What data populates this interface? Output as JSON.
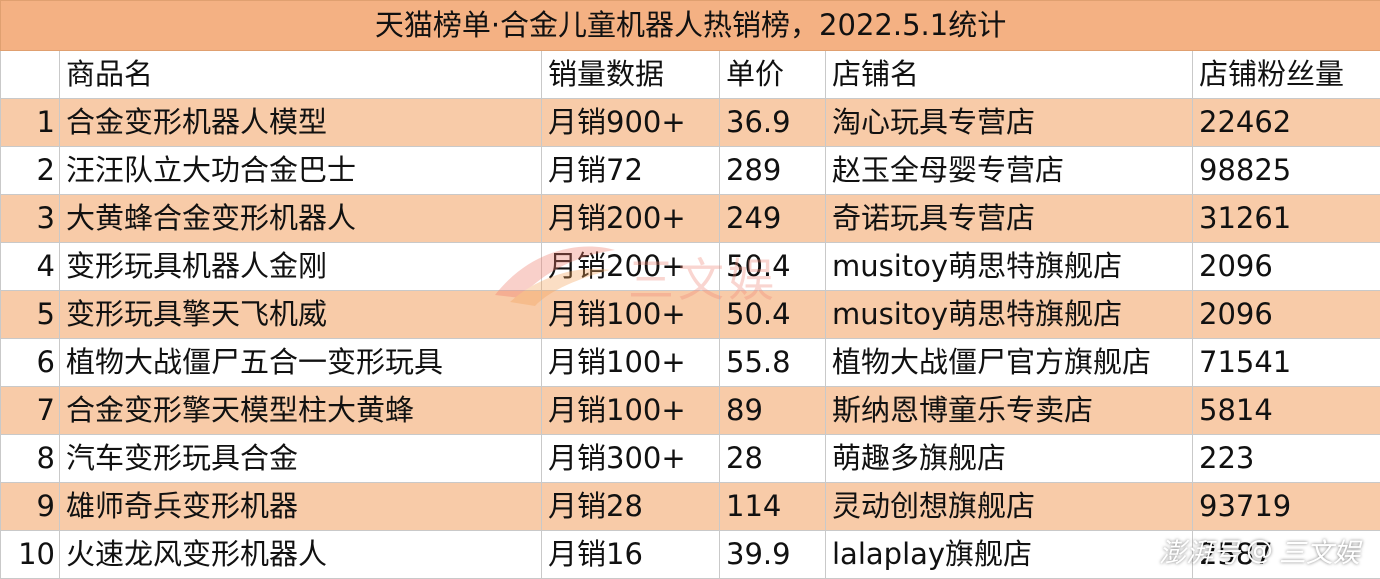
{
  "title": "天猫榜单·合金儿童机器人热销榜，2022.5.1统计",
  "headers": [
    "",
    "商品名",
    "销量数据",
    "单价",
    "店铺名",
    "店铺粉丝量"
  ],
  "rows": [
    {
      "rank": "1",
      "product": "合金变形机器人模型",
      "sales": "月销900+",
      "price": "36.9",
      "shop": "淘心玩具专营店",
      "fans": "22462"
    },
    {
      "rank": "2",
      "product": "汪汪队立大功合金巴士",
      "sales": "月销72",
      "price": "289",
      "shop": "赵玉全母婴专营店",
      "fans": "98825"
    },
    {
      "rank": "3",
      "product": "大黄蜂合金变形机器人",
      "sales": "月销200+",
      "price": "249",
      "shop": "奇诺玩具专营店",
      "fans": "31261"
    },
    {
      "rank": "4",
      "product": "变形玩具机器人金刚",
      "sales": "月销200+",
      "price": "50.4",
      "shop": "musitoy萌思特旗舰店",
      "fans": "2096"
    },
    {
      "rank": "5",
      "product": "变形玩具擎天飞机威",
      "sales": "月销100+",
      "price": "50.4",
      "shop": "musitoy萌思特旗舰店",
      "fans": "2096"
    },
    {
      "rank": "6",
      "product": "植物大战僵尸五合一变形玩具",
      "sales": "月销100+",
      "price": "55.8",
      "shop": "植物大战僵尸官方旗舰店",
      "fans": "71541"
    },
    {
      "rank": "7",
      "product": "合金变形擎天模型柱大黄蜂",
      "sales": "月销100+",
      "price": "89",
      "shop": "斯纳恩博童乐专卖店",
      "fans": "5814"
    },
    {
      "rank": "8",
      "product": "汽车变形玩具合金",
      "sales": "月销300+",
      "price": "28",
      "shop": "萌趣多旗舰店",
      "fans": "223"
    },
    {
      "rank": "9",
      "product": "雄师奇兵变形机器",
      "sales": "月销28",
      "price": "114",
      "shop": "灵动创想旗舰店",
      "fans": "93719"
    },
    {
      "rank": "10",
      "product": "火速龙风变形机器人",
      "sales": "月销16",
      "price": "39.9",
      "shop": "lalaplay旗舰店",
      "fans": "2587"
    }
  ],
  "watermark_center": {
    "text": "三文娱",
    "icon": "swirl-logo-icon"
  },
  "watermark_corner": {
    "brand": "澎湃号",
    "at": "@",
    "author": "三文娱"
  },
  "colors": {
    "title_bg": "#f4b183",
    "stripe_bg": "#f8cba8",
    "border": "#c9c9c9"
  }
}
